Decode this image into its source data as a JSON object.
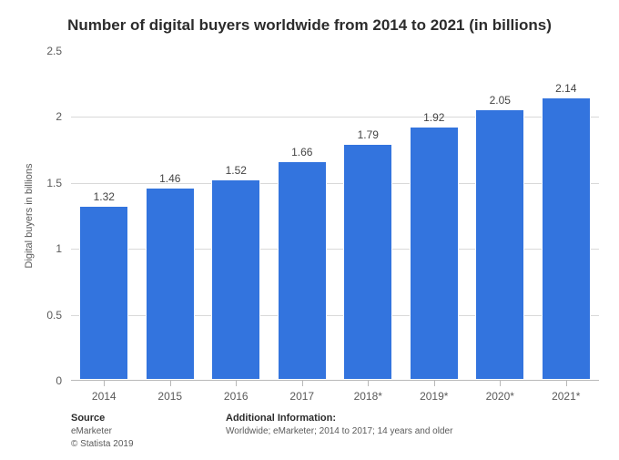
{
  "title": "Number of digital buyers worldwide from 2014 to 2021 (in billions)",
  "chart": {
    "type": "bar",
    "categories": [
      "2014",
      "2015",
      "2016",
      "2017",
      "2018*",
      "2019*",
      "2020*",
      "2021*"
    ],
    "values": [
      1.32,
      1.46,
      1.52,
      1.66,
      1.79,
      1.92,
      2.05,
      2.14
    ],
    "value_labels": [
      "1.32",
      "1.46",
      "1.52",
      "1.66",
      "1.79",
      "1.92",
      "2.05",
      "2.14"
    ],
    "bar_color": "#3374de",
    "bar_border_color": "#ffffff",
    "ylabel": "Digital buyers in billions",
    "ylim": [
      0,
      2.5
    ],
    "ytick_step": 0.5,
    "ytick_labels": [
      "0",
      "0.5",
      "1",
      "1.5",
      "2",
      "2.5"
    ],
    "grid_color": "#d9d9d9",
    "axis_color": "#b8b8b8",
    "background_color": "#ffffff",
    "bar_width_ratio": 0.74,
    "label_fontsize": 12,
    "title_fontsize": 17
  },
  "footer": {
    "source_head": "Source",
    "source_lines": [
      "eMarketer",
      "© Statista 2019"
    ],
    "addl_head": "Additional Information:",
    "addl_text": "Worldwide; eMarketer; 2014 to 2017; 14 years and older"
  }
}
